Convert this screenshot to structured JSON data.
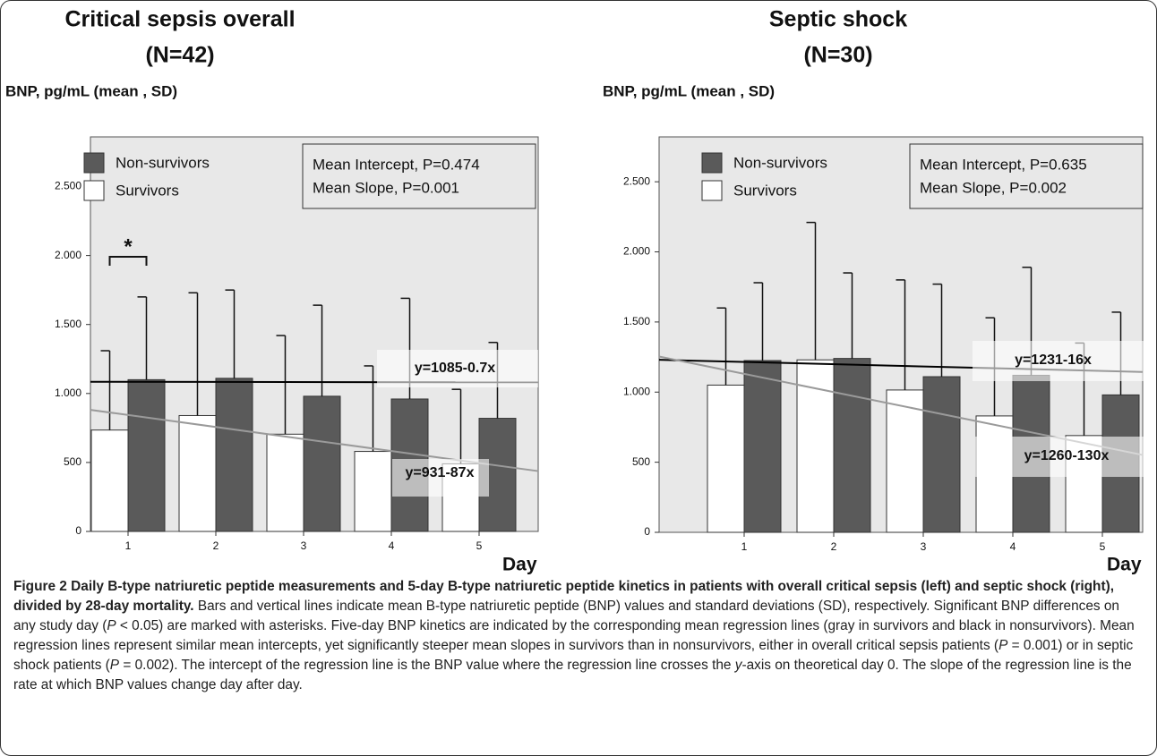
{
  "chart_data": [
    {
      "type": "bar",
      "title": "Critical sepsis overall",
      "subtitle": "(N=42)",
      "ylabel": "BNP, pg/mL (mean , SD)",
      "xlabel": "Day",
      "categories": [
        "1",
        "2",
        "3",
        "4",
        "5"
      ],
      "series": [
        {
          "name": "Non-survivors",
          "color": "#5a5a5a",
          "values": [
            1100,
            1110,
            980,
            960,
            820
          ],
          "errors": [
            600,
            640,
            660,
            730,
            550
          ],
          "regression": {
            "intercept": 1085,
            "slope": -0.7,
            "label": "y=1085-0.7x",
            "color": "#000000"
          }
        },
        {
          "name": "Survivors",
          "color": "#ffffff",
          "values": [
            735,
            840,
            705,
            580,
            490
          ],
          "errors": [
            575,
            890,
            715,
            620,
            540
          ],
          "regression": {
            "intercept": 931,
            "slope": -87,
            "label": "y=931-87x",
            "color": "#9a9a9a"
          }
        }
      ],
      "stats": [
        "Mean Intercept, P=0.474",
        "Mean Slope, P=0.001"
      ],
      "asterisk": "*",
      "ylim": [
        0,
        2860
      ],
      "yticks": [
        0,
        500,
        {
          "value": 1000,
          "label": "1.000"
        },
        {
          "value": 1500,
          "label": "1.500"
        },
        {
          "value": 2000,
          "label": "2.000"
        },
        {
          "value": 2500,
          "label": "2.500"
        }
      ]
    },
    {
      "type": "bar",
      "title": "Septic shock",
      "subtitle": "(N=30)",
      "ylabel": "BNP, pg/mL (mean , SD)",
      "xlabel": "Day",
      "categories": [
        "1",
        "2",
        "3",
        "4",
        "5"
      ],
      "series": [
        {
          "name": "Non-survivors",
          "color": "#5a5a5a",
          "values": [
            1225,
            1240,
            1110,
            1120,
            980
          ],
          "errors": [
            555,
            610,
            660,
            770,
            590
          ],
          "regression": {
            "intercept": 1231,
            "slope": -16,
            "label": "y=1231-16x",
            "color": "#000000"
          }
        },
        {
          "name": "Survivors",
          "color": "#ffffff",
          "values": [
            1050,
            1230,
            1015,
            830,
            690
          ],
          "errors": [
            550,
            980,
            785,
            700,
            660
          ],
          "regression": {
            "intercept": 1260,
            "slope": -130,
            "label": "y=1260-130x",
            "color": "#9a9a9a"
          }
        }
      ],
      "stats": [
        "Mean Intercept, P=0.635",
        "Mean Slope, P=0.002"
      ],
      "ylim": [
        0,
        2820
      ],
      "yticks": [
        0,
        500,
        {
          "value": 1000,
          "label": "1.000"
        },
        {
          "value": 1500,
          "label": "1.500"
        },
        {
          "value": 2000,
          "label": "2.000"
        },
        {
          "value": 2500,
          "label": "2.500"
        }
      ]
    }
  ],
  "caption": {
    "title": "Figure 2 Daily B-type natriuretic peptide measurements and 5-day B-type natriuretic peptide kinetics in patients with overall critical sepsis (left) and septic shock (right), divided by 28-day mortality.",
    "body": [
      {
        "text": "Bars and vertical lines indicate mean B-type natriuretic peptide (BNP) values and standard deviations (SD), respectively. Significant BNP differences on any study day ("
      },
      {
        "text": "P",
        "italic": true
      },
      {
        "text": " < 0.05) are marked with asterisks. Five-day BNP kinetics are indicated by the corresponding mean regression lines (gray in survivors and black in nonsurvivors). Mean regression lines represent similar mean intercepts, yet significantly steeper mean slopes in survivors than in nonsurvivors, either in overall critical sepsis patients ("
      },
      {
        "text": "P",
        "italic": true
      },
      {
        "text": " = 0.001) or in septic shock patients ("
      },
      {
        "text": "P",
        "italic": true
      },
      {
        "text": " = 0.002). The intercept of the regression line is the BNP value where the regression line crosses the "
      },
      {
        "text": "y",
        "italic": true
      },
      {
        "text": "-axis on theoretical day 0. The slope of the regression line is the rate at which BNP values change day after day."
      }
    ]
  }
}
